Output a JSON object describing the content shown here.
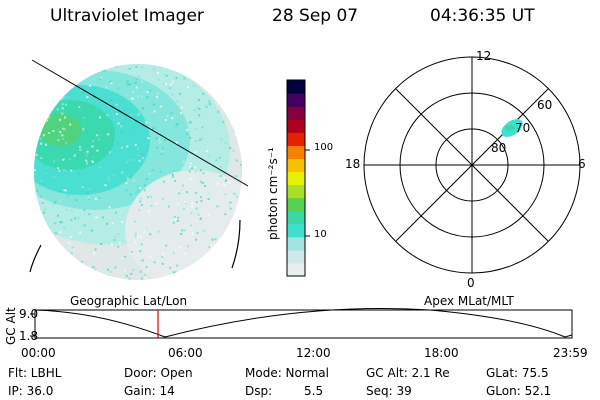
{
  "header": {
    "title": "Ultraviolet Imager",
    "date": "28 Sep 07",
    "time": "04:36:35 UT"
  },
  "colorbar": {
    "unit_label": "photon cm⁻²s⁻¹",
    "ticks": [
      "100",
      "10"
    ],
    "colors": [
      "#e8eef0",
      "#d0e8ea",
      "#9fe6e2",
      "#40e0d0",
      "#38d8a8",
      "#58d050",
      "#a8e028",
      "#e8f000",
      "#f8c000",
      "#f88000",
      "#e82000",
      "#b00020",
      "#800040",
      "#400060",
      "#000040"
    ]
  },
  "polar": {
    "mlt_labels": [
      "12",
      "18",
      "6",
      "0"
    ],
    "lat_labels": [
      "60",
      "70",
      "80"
    ]
  },
  "timeline": {
    "left_title": "Geographic Lat/Lon",
    "right_title": "Apex MLat/MLT",
    "axis_label": "GC Alt",
    "y_ticks": [
      "9.0",
      "1.8"
    ],
    "x_ticks": [
      "00:00",
      "06:00",
      "12:00",
      "18:00",
      "23:59"
    ]
  },
  "status": {
    "filter": "Flt: LBHL",
    "ip": "IP: 36.0",
    "door": "Door: Open",
    "gain": "Gain: 14",
    "mode": "Mode: Normal",
    "dsp_label": "Dsp:",
    "dsp_value": "5.5",
    "gc_alt": "GC Alt: 2.1 Re",
    "seq": "Seq: 39",
    "glat": "GLat: 75.5",
    "glon": "GLon: 52.1"
  }
}
